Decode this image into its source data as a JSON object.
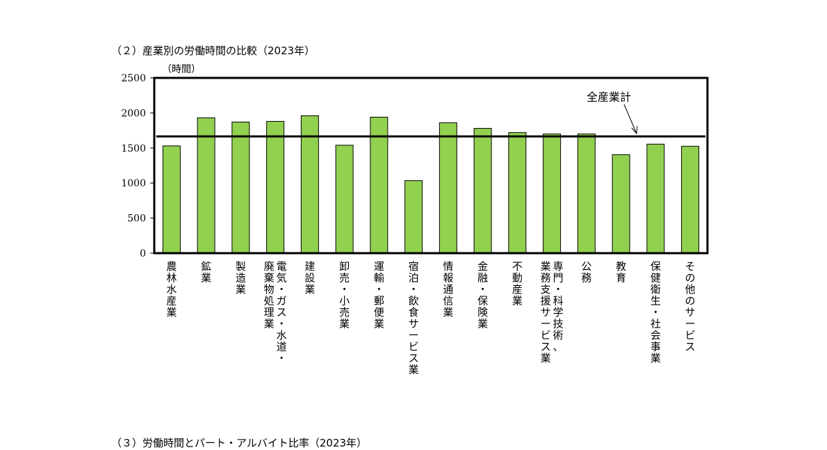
{
  "sections": {
    "chart_heading": "（２）産業別の労働時間の比較（2023年）",
    "next_heading": "（３）労働時間とパート・アルバイト比率（2023年）"
  },
  "colors": {
    "bar": "#92d050",
    "bar_stroke": "#000000",
    "line": "#000000"
  },
  "chart_data": {
    "type": "bar",
    "title": "（２）産業別の労働時間の比較（2023年）",
    "ylabel": "（時間）",
    "ylim": [
      0,
      2500
    ],
    "yticks": [
      0,
      500,
      1000,
      1500,
      2000,
      2500
    ],
    "grid": false,
    "categories": [
      "農林水産業",
      "鉱業",
      "製造業",
      "電気・ガス・水道・廃棄物処理業",
      "建設業",
      "卸売・小売業",
      "運輸・郵便業",
      "宿泊・飲食サービス業",
      "情報通信業",
      "金融・保険業",
      "不動産業",
      "専門・科学技術、業務支援サービス業",
      "公務",
      "教育",
      "保健衛生・社会事業",
      "その他のサービス"
    ],
    "category_label_columns": [
      [
        "農林水産業"
      ],
      [
        "鉱業"
      ],
      [
        "製造業"
      ],
      [
        "電気・ガス・水道・",
        "廃棄物処理業"
      ],
      [
        "建設業"
      ],
      [
        "卸売・小売業"
      ],
      [
        "運輸・郵便業"
      ],
      [
        "宿泊・飲食サービス業"
      ],
      [
        "情報通信業"
      ],
      [
        "金融・保険業"
      ],
      [
        "不動産業"
      ],
      [
        "専門・科学技術、",
        "業務支援サービス業"
      ],
      [
        "公務"
      ],
      [
        "教育"
      ],
      [
        "保健衛生・社会事業"
      ],
      [
        "その他のサービス"
      ]
    ],
    "values": [
      1530,
      1930,
      1870,
      1880,
      1960,
      1540,
      1940,
      1035,
      1860,
      1780,
      1720,
      1700,
      1700,
      1405,
      1555,
      1525
    ],
    "reference_line": {
      "label": "全産業計",
      "value": 1665
    }
  }
}
